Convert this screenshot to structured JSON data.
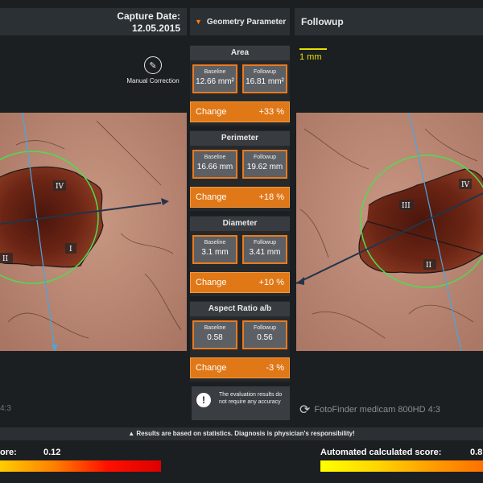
{
  "header": {
    "capture_date_label": "Capture Date:",
    "capture_date_value": "12.05.2015",
    "geometry_menu_label": "Geometry Parameter",
    "followup_label": "Followup"
  },
  "toolbar": {
    "manual_correction_label": "Manual Correction"
  },
  "scale": {
    "label": "1 mm"
  },
  "sections": [
    {
      "title": "Area",
      "baseline_label": "Baseline",
      "baseline_value": "12.66 mm²",
      "followup_label": "Followup",
      "followup_value": "16.81 mm²",
      "change_label": "Change",
      "change_value": "+33 %"
    },
    {
      "title": "Perimeter",
      "baseline_label": "Baseline",
      "baseline_value": "16.66 mm",
      "followup_label": "Followup",
      "followup_value": "19.62 mm",
      "change_label": "Change",
      "change_value": "+18 %"
    },
    {
      "title": "Diameter",
      "baseline_label": "Baseline",
      "baseline_value": "3.1 mm",
      "followup_label": "Followup",
      "followup_value": "3.41 mm",
      "change_label": "Change",
      "change_value": "+10 %"
    },
    {
      "title": "Aspect Ratio a/b",
      "baseline_label": "Baseline",
      "baseline_value": "0.58",
      "followup_label": "Followup",
      "followup_value": "0.56",
      "change_label": "Change",
      "change_value": "-3 %"
    }
  ],
  "left_image": {
    "quadrants": [
      "IV",
      "I",
      "II"
    ]
  },
  "right_image": {
    "quadrants": [
      "III",
      "IV",
      "II"
    ]
  },
  "warning": {
    "text": "The evaluation results do not require any accuracy",
    "icon": "warning-icon"
  },
  "devices": {
    "left": "4:3",
    "right": "FotoFinder medicam 800HD 4:3"
  },
  "status_bar": {
    "text": "Results are based on statistics. Diagnosis is physician's responsibility!"
  },
  "scores": {
    "left_label": "ore:",
    "left_value": "0.12",
    "right_label": "Automated calculated score:",
    "right_value": "0.8"
  },
  "colors": {
    "accent": "#e07818",
    "border": "#f09a40",
    "circle": "#4fdc4f",
    "scale": "#e6e200",
    "axis_blue": "#49a6e0"
  }
}
